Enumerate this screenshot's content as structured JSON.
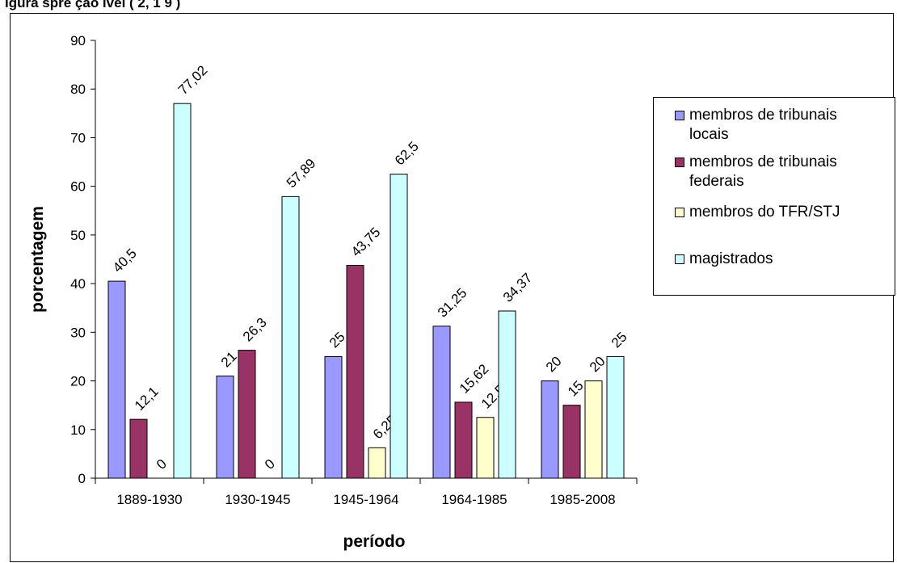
{
  "header": {
    "title_fragment": "igura    spre   ção    ivel  (  2,  1  9  )"
  },
  "chart_data": {
    "type": "bar",
    "categories": [
      "1889-1930",
      "1930-1945",
      "1945-1964",
      "1964-1985",
      "1985-2008"
    ],
    "series": [
      {
        "name": "membros de tribunais locais",
        "color": "#9999FF",
        "values": [
          40.5,
          21,
          25,
          31.25,
          20
        ]
      },
      {
        "name": "membros de tribunais federais",
        "color": "#993366",
        "values": [
          12.1,
          26.3,
          43.75,
          15.62,
          15
        ]
      },
      {
        "name": "membros do TFR/STJ",
        "color": "#FFFFCC",
        "values": [
          0,
          0,
          6.25,
          12.5,
          20
        ]
      },
      {
        "name": "magistrados",
        "color": "#CCFFFF",
        "values": [
          77.02,
          57.89,
          62.5,
          34.37,
          25
        ]
      }
    ],
    "data_labels": [
      [
        "40,5",
        "21",
        "25",
        "31,25",
        "20"
      ],
      [
        "12,1",
        "26,3",
        "43,75",
        "15,62",
        "15"
      ],
      [
        "0",
        "0",
        "6,25",
        "12,5",
        "20"
      ],
      [
        "77,02",
        "57,89",
        "62,5",
        "34,37",
        "25"
      ]
    ],
    "yticks": [
      "0",
      "10",
      "20",
      "30",
      "40",
      "50",
      "60",
      "70",
      "80",
      "90"
    ],
    "ylim": [
      0,
      90
    ],
    "xlabel": "período",
    "ylabel": "porcentagem",
    "grid": false,
    "legend_position": "right"
  },
  "legend": {
    "items": [
      {
        "line1": "membros de tribunais",
        "line2": "locais"
      },
      {
        "line1": "membros de tribunais",
        "line2": "federais"
      },
      {
        "line1": "membros do TFR/STJ",
        "line2": ""
      },
      {
        "line1": "magistrados",
        "line2": ""
      }
    ]
  }
}
